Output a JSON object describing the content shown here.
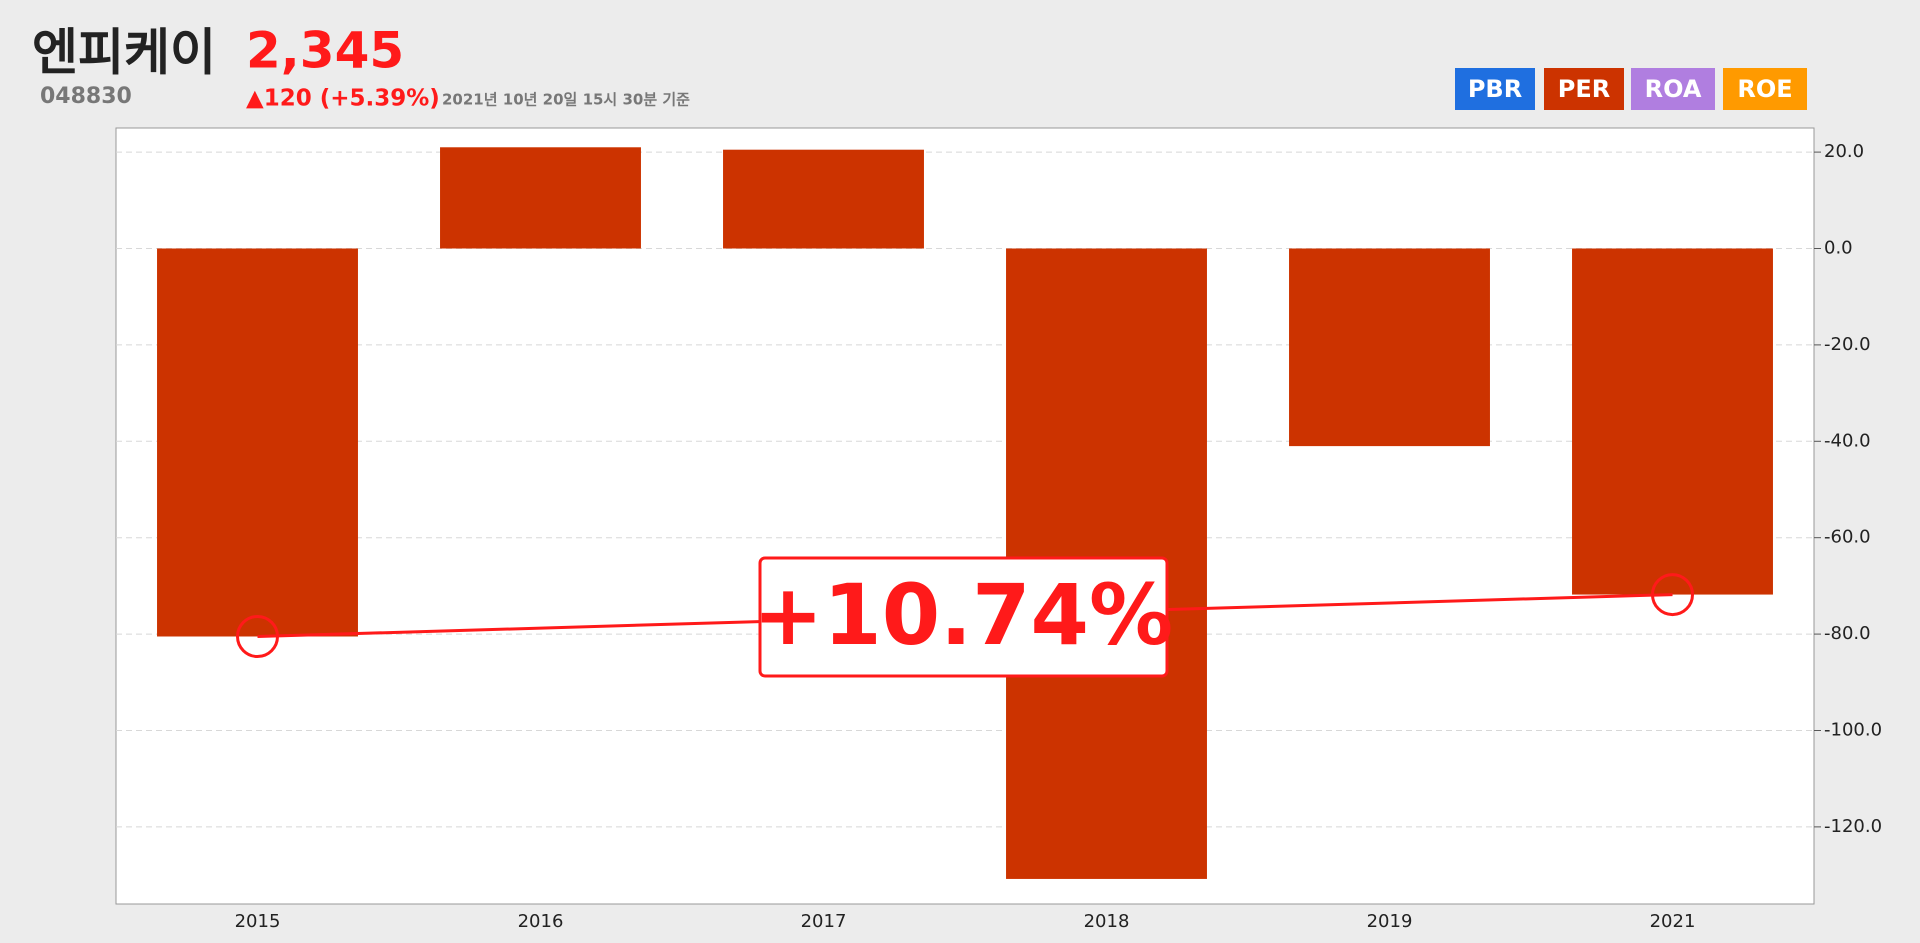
{
  "header": {
    "name": "엔피케이",
    "price": "2,345",
    "code": "048830",
    "change": "▲120 (+5.39%)",
    "timestamp": "2021년 10년 20일 15시 30분 기준"
  },
  "buttons": [
    {
      "label": "PBR",
      "color": "#1f6fe0"
    },
    {
      "label": "PER",
      "color": "#cc3300"
    },
    {
      "label": "ROA",
      "color": "#b07ee0"
    },
    {
      "label": "ROE",
      "color": "#ff9a00"
    }
  ],
  "chart_data": {
    "type": "bar",
    "categories": [
      "2015",
      "2016",
      "2017",
      "2018",
      "2019",
      "2021"
    ],
    "values": [
      -80.5,
      21.0,
      20.5,
      -130.8,
      -41.0,
      -71.8
    ],
    "color": "#cc3300",
    "ylim": [
      -136,
      25
    ],
    "yticks": [
      {
        "value": 20,
        "label": "20.0"
      },
      {
        "value": 0,
        "label": "0.0"
      },
      {
        "value": -20,
        "label": "-20.0"
      },
      {
        "value": -40,
        "label": "-40.0"
      },
      {
        "value": -60,
        "label": "-60.0"
      },
      {
        "value": -80,
        "label": "-80.0"
      },
      {
        "value": -100,
        "label": "-100.0"
      },
      {
        "value": -120,
        "label": "-120.0"
      }
    ],
    "grid": true,
    "annotation": "+10.74%",
    "annotation_color": "#ff1a1a"
  }
}
